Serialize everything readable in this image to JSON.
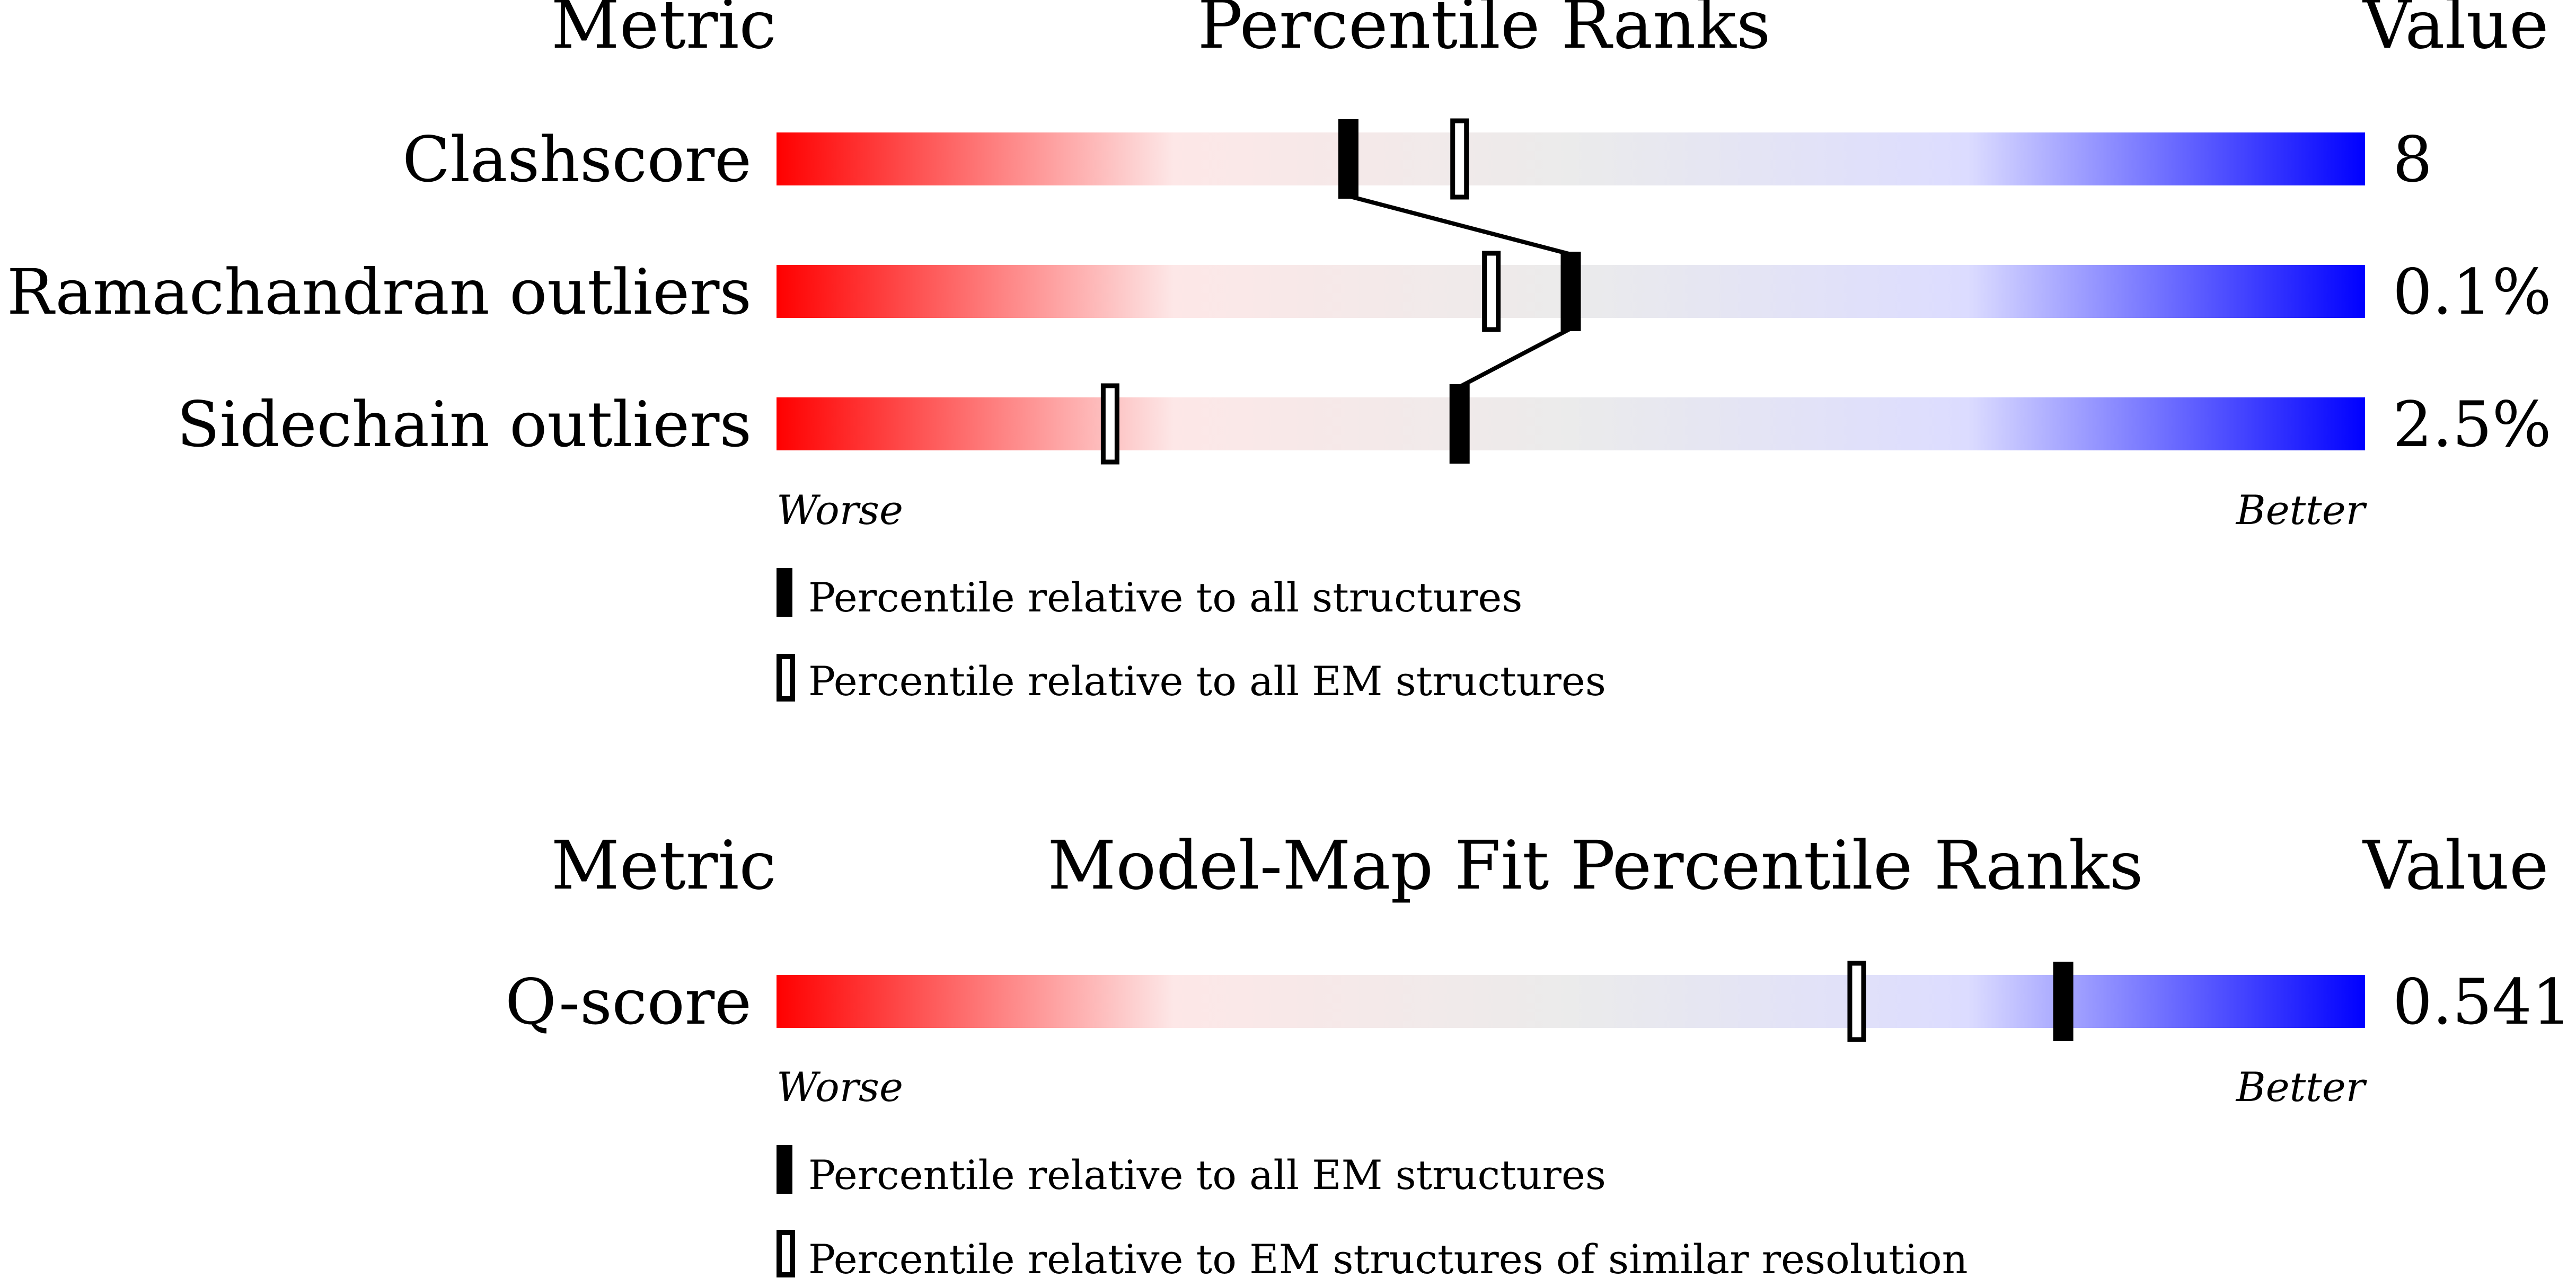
{
  "chart_data": [
    {
      "type": "bar",
      "headers": {
        "metric": "Metric",
        "title": "Percentile Ranks",
        "value": "Value"
      },
      "scale_labels": {
        "worse": "Worse",
        "better": "Better"
      },
      "percentile_range": [
        0,
        100
      ],
      "gradient_colors": [
        "#ff0000",
        "#fde7e7",
        "#ebebeb",
        "#dcdcff",
        "#0000ff"
      ],
      "rows": [
        {
          "metric": "Clashscore",
          "value": "8",
          "percentile_all": 36,
          "percentile_em": 43
        },
        {
          "metric": "Ramachandran outliers",
          "value": "0.1%",
          "percentile_all": 50,
          "percentile_em": 45
        },
        {
          "metric": "Sidechain outliers",
          "value": "2.5%",
          "percentile_all": 43,
          "percentile_em": 21
        }
      ],
      "legend": {
        "filled": "Percentile relative to all structures",
        "open": "Percentile relative to all EM structures"
      }
    },
    {
      "type": "bar",
      "headers": {
        "metric": "Metric",
        "title": "Model-Map Fit Percentile Ranks",
        "value": "Value"
      },
      "scale_labels": {
        "worse": "Worse",
        "better": "Better"
      },
      "percentile_range": [
        0,
        100
      ],
      "gradient_colors": [
        "#ff0000",
        "#fde7e7",
        "#ebebeb",
        "#dcdcff",
        "#0000ff"
      ],
      "rows": [
        {
          "metric": "Q-score",
          "value": "0.541",
          "percentile_all": 81,
          "percentile_em": 68
        }
      ],
      "legend": {
        "filled": "Percentile relative to all EM structures",
        "open": "Percentile relative to EM structures of similar resolution"
      }
    }
  ]
}
